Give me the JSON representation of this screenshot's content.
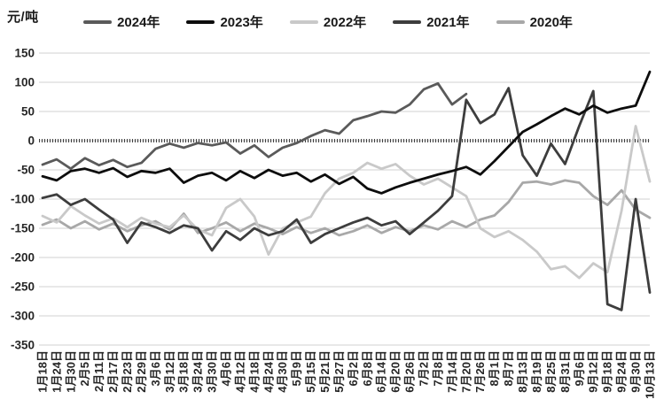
{
  "chart": {
    "unit_label": "元/吨"
  },
  "chart_data": {
    "type": "line",
    "title": "",
    "xlabel": "",
    "ylabel": "元/吨",
    "ylim": [
      -350,
      150
    ],
    "ytick_step": 50,
    "yticks": [
      150,
      100,
      50,
      0,
      -50,
      -100,
      -150,
      -200,
      -250,
      -300,
      -350
    ],
    "grid": "horizontal",
    "gridline_color": "#d2d2d2",
    "zero_line": "dotted",
    "zero_line_color": "#404040",
    "legend_position": "top",
    "categories": [
      "1月18日",
      "1月24日",
      "1月30日",
      "2月5日",
      "2月11日",
      "2月17日",
      "2月23日",
      "2月29日",
      "3月6日",
      "3月12日",
      "3月18日",
      "3月24日",
      "3月30日",
      "4月6日",
      "4月12日",
      "4月18日",
      "4月24日",
      "4月30日",
      "5月9日",
      "5月15日",
      "5月21日",
      "5月27日",
      "6月2日",
      "6月8日",
      "6月14日",
      "6月20日",
      "6月26日",
      "7月2日",
      "7月8日",
      "7月14日",
      "7月20日",
      "7月26日",
      "8月1日",
      "8月7日",
      "8月13日",
      "8月19日",
      "8月25日",
      "8月31日",
      "9月6日",
      "9月12日",
      "9月18日",
      "9月24日",
      "9月30日",
      "10月13日"
    ],
    "series": [
      {
        "name": "2024年",
        "color": "#5a5a5a",
        "values": [
          -41,
          -32,
          -48,
          -30,
          -42,
          -33,
          -45,
          -38,
          -14,
          -5,
          -12,
          -4,
          -8,
          -3,
          -22,
          -8,
          -28,
          -12,
          -4,
          8,
          18,
          12,
          35,
          42,
          50,
          48,
          62,
          88,
          98,
          62,
          80
        ]
      },
      {
        "name": "2023年",
        "color": "#0d0d0d",
        "values": [
          -61,
          -68,
          -52,
          -48,
          -55,
          -47,
          -62,
          -52,
          -55,
          -48,
          -72,
          -60,
          -55,
          -68,
          -52,
          -64,
          -50,
          -60,
          -55,
          -70,
          -58,
          -74,
          -62,
          -82,
          -90,
          -80,
          -72,
          -65,
          -58,
          -52,
          -45,
          -58,
          -35,
          -10,
          15,
          28,
          42,
          55,
          45,
          60,
          48,
          55,
          60,
          118
        ]
      },
      {
        "name": "2022年",
        "color": "#c9c9c9",
        "values": [
          -129,
          -140,
          -112,
          -128,
          -142,
          -133,
          -148,
          -132,
          -142,
          -148,
          -128,
          -152,
          -162,
          -115,
          -100,
          -130,
          -195,
          -150,
          -140,
          -130,
          -90,
          -65,
          -55,
          -38,
          -48,
          -40,
          -60,
          -75,
          -65,
          -80,
          -95,
          -150,
          -165,
          -155,
          -170,
          -190,
          -220,
          -215,
          -235,
          -210,
          -225,
          -120,
          25,
          -70
        ]
      },
      {
        "name": "2021年",
        "color": "#3d3d3d",
        "values": [
          -98,
          -92,
          -110,
          -100,
          -118,
          -135,
          -175,
          -140,
          -148,
          -158,
          -145,
          -150,
          -188,
          -155,
          -170,
          -150,
          -162,
          -155,
          -135,
          -175,
          -160,
          -150,
          -140,
          -132,
          -145,
          -138,
          -160,
          -140,
          -120,
          -95,
          70,
          30,
          45,
          90,
          -25,
          -60,
          -5,
          -40,
          25,
          85,
          -280,
          -290,
          -100,
          -260
        ]
      },
      {
        "name": "2020年",
        "color": "#a8a8a8",
        "values": [
          -144,
          -135,
          -150,
          -138,
          -152,
          -142,
          -155,
          -145,
          -138,
          -152,
          -125,
          -158,
          -150,
          -140,
          -155,
          -142,
          -150,
          -160,
          -148,
          -158,
          -150,
          -162,
          -155,
          -145,
          -158,
          -148,
          -155,
          -145,
          -152,
          -138,
          -148,
          -135,
          -128,
          -105,
          -72,
          -70,
          -75,
          -68,
          -72,
          -95,
          -110,
          -85,
          -118,
          -132
        ]
      }
    ]
  }
}
